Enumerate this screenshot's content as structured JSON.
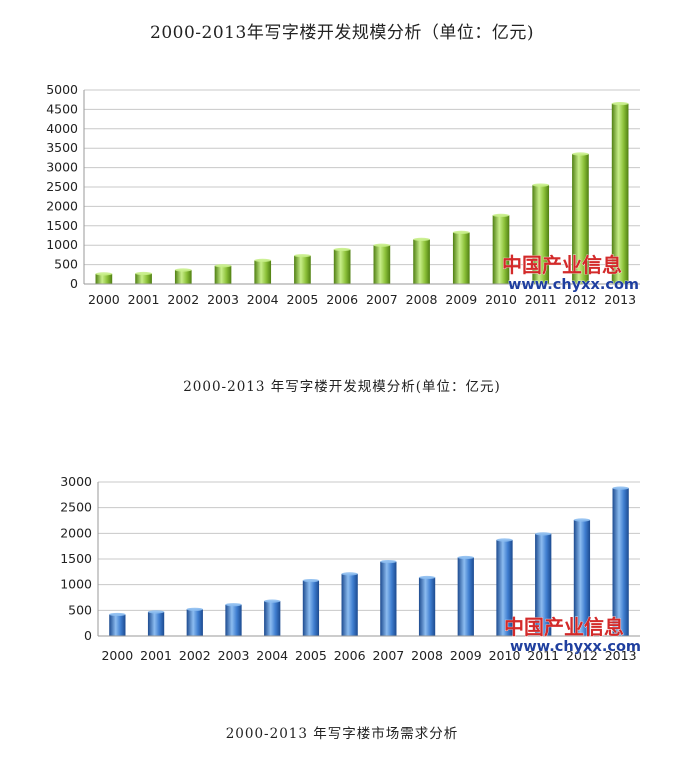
{
  "page": {
    "title": "2000-2013年写字楼开发规模分析（单位：亿元)",
    "caption1": "2000-2013 年写字楼开发规模分析(单位：亿元)",
    "caption2": "2000-2013 年写字楼市场需求分析"
  },
  "watermark": {
    "cn": "中国产业信息",
    "url": "www.chyxx.com",
    "cn_color": "#d32a2a",
    "url_color": "#1f3f9f"
  },
  "chart_data": [
    {
      "type": "bar",
      "categories": [
        "2000",
        "2001",
        "2002",
        "2003",
        "2004",
        "2005",
        "2006",
        "2007",
        "2008",
        "2009",
        "2010",
        "2011",
        "2012",
        "2013"
      ],
      "series": [
        {
          "values": [
            260,
            270,
            360,
            470,
            610,
            730,
            890,
            1000,
            1150,
            1330,
            1770,
            2550,
            3350,
            4650
          ]
        }
      ],
      "ylim": [
        0,
        5000
      ],
      "yticks": [
        0,
        500,
        1000,
        1500,
        2000,
        2500,
        3000,
        3500,
        4000,
        4500,
        5000
      ],
      "grid": true,
      "colors": {
        "bar": "#8dc23a",
        "bar_dark": "#4f7f12",
        "bar_light": "#c8ee8a"
      }
    },
    {
      "type": "bar",
      "categories": [
        "2000",
        "2001",
        "2002",
        "2003",
        "2004",
        "2005",
        "2006",
        "2007",
        "2008",
        "2009",
        "2010",
        "2011",
        "2012",
        "2013"
      ],
      "series": [
        {
          "values": [
            420,
            470,
            520,
            610,
            680,
            1080,
            1210,
            1450,
            1140,
            1530,
            1870,
            1990,
            2260,
            2880
          ]
        }
      ],
      "ylim": [
        0,
        3000
      ],
      "yticks": [
        0,
        500,
        1000,
        1500,
        2000,
        2500,
        3000
      ],
      "grid": true,
      "colors": {
        "bar": "#3f7ed0",
        "bar_dark": "#1c4a8f",
        "bar_light": "#8cbcf0"
      }
    }
  ]
}
